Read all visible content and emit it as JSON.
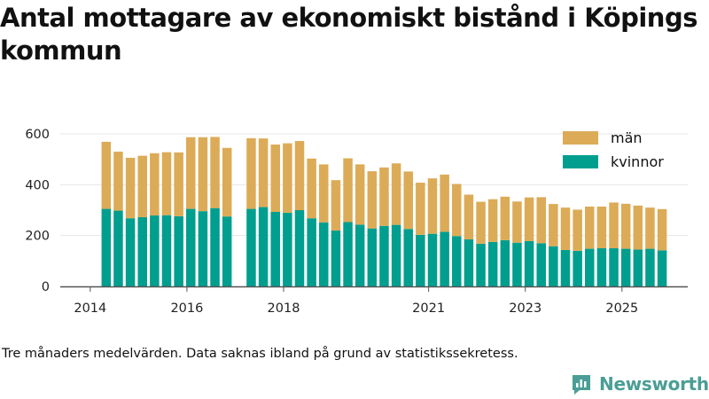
{
  "title": "Antal mottagare av ekonomiskt bistånd i Köpings kommun",
  "note": "Tre månaders medelvärden. Data saknas ibland på grund av statistikssekretess.",
  "brand": {
    "name": "Newsworthy"
  },
  "colors": {
    "man": "#dcab57",
    "kvinnor": "#009e8e",
    "axis": "#555555",
    "grid": "#e6e6e6",
    "brand": "#4a9e95"
  },
  "chart_data": {
    "type": "bar",
    "stacked": true,
    "title": "Antal mottagare av ekonomiskt bistånd i Köpings kommun",
    "xlabel": "",
    "ylabel": "",
    "ylim": [
      0,
      600
    ],
    "yticks": [
      0,
      200,
      400,
      600
    ],
    "xticks": [
      {
        "label": "2014",
        "t": 2014.0
      },
      {
        "label": "2016",
        "t": 2016.0
      },
      {
        "label": "2018",
        "t": 2018.0
      },
      {
        "label": "2021",
        "t": 2021.0
      },
      {
        "label": "2023",
        "t": 2023.0
      },
      {
        "label": "2025",
        "t": 2025.0
      }
    ],
    "legend": {
      "placement": "top-right",
      "entries": [
        "män",
        "kvinnor"
      ]
    },
    "series": [
      {
        "name": "kvinnor",
        "color": "#009e8e",
        "values": [
          305,
          298,
          268,
          272,
          279,
          280,
          276,
          305,
          296,
          308,
          275,
          305,
          312,
          293,
          290,
          300,
          268,
          252,
          220,
          253,
          243,
          228,
          238,
          242,
          226,
          203,
          207,
          215,
          198,
          185,
          168,
          175,
          182,
          172,
          178,
          170,
          158,
          143,
          140,
          148,
          150,
          150,
          148,
          145,
          148,
          142
        ]
      },
      {
        "name": "män",
        "color": "#dcab57",
        "values": [
          264,
          232,
          238,
          242,
          245,
          248,
          251,
          282,
          291,
          280,
          270,
          278,
          270,
          265,
          273,
          272,
          235,
          228,
          198,
          251,
          237,
          225,
          230,
          242,
          226,
          205,
          218,
          225,
          205,
          176,
          165,
          168,
          171,
          162,
          172,
          181,
          166,
          167,
          162,
          166,
          164,
          180,
          177,
          173,
          162,
          162
        ]
      }
    ],
    "x": [
      2014.33,
      2014.58,
      2014.83,
      2015.08,
      2015.33,
      2015.58,
      2015.83,
      2016.08,
      2016.33,
      2016.58,
      2016.83,
      2017.33,
      2017.58,
      2017.83,
      2018.08,
      2018.33,
      2018.58,
      2018.83,
      2019.08,
      2019.33,
      2019.58,
      2019.83,
      2020.08,
      2020.33,
      2020.58,
      2020.83,
      2021.08,
      2021.33,
      2021.58,
      2021.83,
      2022.08,
      2022.33,
      2022.58,
      2022.83,
      2023.08,
      2023.33,
      2023.58,
      2023.83,
      2024.08,
      2024.33,
      2024.58,
      2024.83,
      2025.08,
      2025.33,
      2025.58,
      2025.83
    ]
  }
}
